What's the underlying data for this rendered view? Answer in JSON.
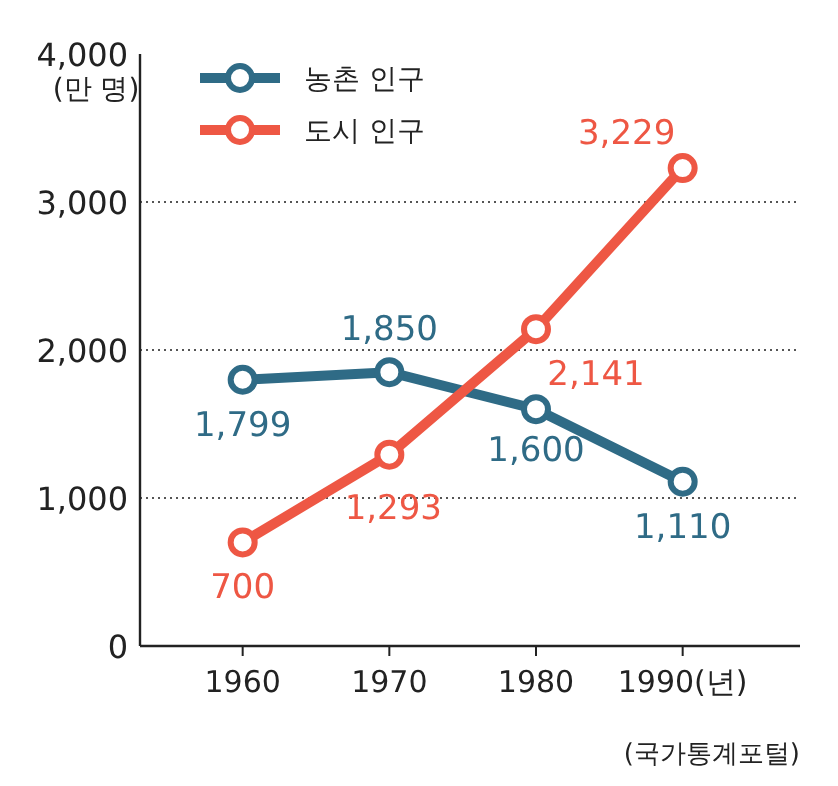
{
  "chart_data": {
    "type": "line",
    "ylabel": "(만 명)",
    "x": [
      1960,
      1970,
      1980,
      1990
    ],
    "series": [
      {
        "name": "농촌 인구",
        "color": "#2f6b86",
        "values": [
          1799,
          1850,
          1600,
          1110
        ],
        "value_labels": [
          "1,799",
          "1,850",
          "1,600",
          "1,110"
        ]
      },
      {
        "name": "도시 인구",
        "color": "#ee5744",
        "values": [
          700,
          1293,
          2141,
          3229
        ],
        "value_labels": [
          "700",
          "1,293",
          "2,141",
          "3,229"
        ]
      }
    ],
    "xlim": [
      1953,
      1998
    ],
    "ylim": [
      0,
      4000
    ],
    "xticks": [
      1960,
      1970,
      1980,
      {
        "value": 1990,
        "label": "1990(년)"
      }
    ],
    "yticks": [
      0,
      {
        "value": 1000,
        "label": "1,000"
      },
      {
        "value": 2000,
        "label": "2,000"
      },
      {
        "value": 3000,
        "label": "3,000"
      },
      {
        "value": 4000,
        "label": "4,000"
      }
    ],
    "grid": "y",
    "legend": "top left",
    "marker": "circle",
    "line_style": "solid",
    "annotations": [
      "(국가통계포털)"
    ]
  }
}
